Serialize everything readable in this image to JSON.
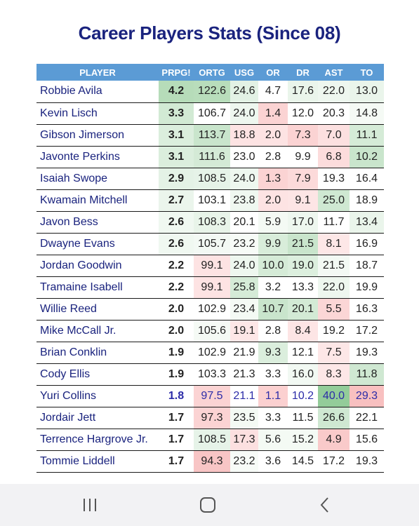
{
  "title": "Career Players Stats (Since 08)",
  "columns": [
    "PLAYER",
    "PRPG!",
    "ORTG",
    "USG",
    "OR",
    "DR",
    "AST",
    "TO"
  ],
  "rows": [
    {
      "player": "Robbie Avila",
      "prpg": "4.2",
      "ortg": "122.6",
      "usg": "24.6",
      "or": "4.7",
      "dr": "17.6",
      "ast": "22.0",
      "to": "13.0"
    },
    {
      "player": "Kevin Lisch",
      "prpg": "3.3",
      "ortg": "106.7",
      "usg": "24.0",
      "or": "1.4",
      "dr": "12.0",
      "ast": "20.3",
      "to": "14.8"
    },
    {
      "player": "Gibson Jimerson",
      "prpg": "3.1",
      "ortg": "113.7",
      "usg": "18.8",
      "or": "2.0",
      "dr": "7.3",
      "ast": "7.0",
      "to": "11.1"
    },
    {
      "player": "Javonte Perkins",
      "prpg": "3.1",
      "ortg": "111.6",
      "usg": "23.0",
      "or": "2.8",
      "dr": "9.9",
      "ast": "6.8",
      "to": "10.2"
    },
    {
      "player": "Isaiah Swope",
      "prpg": "2.9",
      "ortg": "108.5",
      "usg": "24.0",
      "or": "1.3",
      "dr": "7.9",
      "ast": "19.3",
      "to": "16.4"
    },
    {
      "player": "Kwamain Mitchell",
      "prpg": "2.7",
      "ortg": "103.1",
      "usg": "23.8",
      "or": "2.0",
      "dr": "9.1",
      "ast": "25.0",
      "to": "18.9"
    },
    {
      "player": "Javon Bess",
      "prpg": "2.6",
      "ortg": "108.3",
      "usg": "20.1",
      "or": "5.9",
      "dr": "17.0",
      "ast": "11.7",
      "to": "13.4"
    },
    {
      "player": "Dwayne Evans",
      "prpg": "2.6",
      "ortg": "105.7",
      "usg": "23.2",
      "or": "9.9",
      "dr": "21.5",
      "ast": "8.1",
      "to": "16.9"
    },
    {
      "player": "Jordan Goodwin",
      "prpg": "2.2",
      "ortg": "99.1",
      "usg": "24.0",
      "or": "10.0",
      "dr": "19.0",
      "ast": "21.5",
      "to": "18.7"
    },
    {
      "player": "Tramaine Isabell",
      "prpg": "2.2",
      "ortg": "99.1",
      "usg": "25.8",
      "or": "3.2",
      "dr": "13.3",
      "ast": "22.0",
      "to": "19.9"
    },
    {
      "player": "Willie Reed",
      "prpg": "2.0",
      "ortg": "102.9",
      "usg": "23.4",
      "or": "10.7",
      "dr": "20.1",
      "ast": "5.5",
      "to": "16.3"
    },
    {
      "player": "Mike McCall Jr.",
      "prpg": "2.0",
      "ortg": "105.6",
      "usg": "19.1",
      "or": "2.8",
      "dr": "8.4",
      "ast": "19.2",
      "to": "17.2"
    },
    {
      "player": "Brian Conklin",
      "prpg": "1.9",
      "ortg": "102.9",
      "usg": "21.9",
      "or": "9.3",
      "dr": "12.1",
      "ast": "7.5",
      "to": "19.3"
    },
    {
      "player": "Cody Ellis",
      "prpg": "1.9",
      "ortg": "103.3",
      "usg": "21.3",
      "or": "3.3",
      "dr": "16.0",
      "ast": "8.3",
      "to": "11.8"
    },
    {
      "player": "Yuri Collins",
      "prpg": "1.8",
      "ortg": "97.5",
      "usg": "21.1",
      "or": "1.1",
      "dr": "10.2",
      "ast": "40.0",
      "to": "29.3",
      "highlight": true
    },
    {
      "player": "Jordair Jett",
      "prpg": "1.7",
      "ortg": "97.3",
      "usg": "23.5",
      "or": "3.3",
      "dr": "11.5",
      "ast": "26.6",
      "to": "22.1"
    },
    {
      "player": "Terrence Hargrove Jr.",
      "prpg": "1.7",
      "ortg": "108.5",
      "usg": "17.3",
      "or": "5.6",
      "dr": "15.2",
      "ast": "4.9",
      "to": "15.6"
    },
    {
      "player": "Tommie Liddell",
      "prpg": "1.7",
      "ortg": "94.3",
      "usg": "23.2",
      "or": "3.6",
      "dr": "14.5",
      "ast": "17.2",
      "to": "19.3"
    }
  ],
  "cell_colors": {
    "prpg": [
      "#b6dcb9",
      "#d2ead4",
      "#dbeedd",
      "#dbeedd",
      "#e4f2e6",
      "#ebf5ec",
      "#f0f8f1",
      "#f0f8f1",
      "#ffffff",
      "#ffffff",
      "#ffffff",
      "#ffffff",
      "#ffffff",
      "#ffffff",
      "#ffffff",
      "#ffffff",
      "#ffffff",
      "#ffffff"
    ],
    "ortg": [
      "#b8ddbb",
      "#ffffff",
      "#c9e5cc",
      "#d4ead6",
      "#e6f3e8",
      "#ffffff",
      "#e8f4e9",
      "#f3f9f4",
      "#fde3e3",
      "#fde3e3",
      "#ffffff",
      "#f5faf5",
      "#ffffff",
      "#ffffff",
      "#fbd3d3",
      "#fbd3d3",
      "#e6f3e8",
      "#f8c5c5"
    ],
    "usg": [
      "#e3f2e5",
      "#eef7ef",
      "#fde3e3",
      "#ffffff",
      "#eef7ef",
      "#eff8f0",
      "#ffffff",
      "#f7fbf7",
      "#eef7ef",
      "#d5ebd7",
      "#f4faf4",
      "#fde7e7",
      "#ffffff",
      "#ffffff",
      "#ffffff",
      "#f4faf4",
      "#fce0e0",
      "#f7fbf7"
    ],
    "or": [
      "#ffffff",
      "#fbd3d3",
      "#fde3e3",
      "#ffffff",
      "#fbd3d3",
      "#fde3e3",
      "#f4faf4",
      "#d8edda",
      "#d5ebd7",
      "#ffffff",
      "#c9e5cc",
      "#ffffff",
      "#dbeedd",
      "#ffffff",
      "#fbd0d0",
      "#ffffff",
      "#f4faf4",
      "#ffffff"
    ],
    "dr": [
      "#eaf5eb",
      "#ffffff",
      "#fbd3d3",
      "#ffffff",
      "#fcdada",
      "#fde5e5",
      "#eef7ef",
      "#c9e5cc",
      "#dcefde",
      "#ffffff",
      "#d3ead5",
      "#fde5e5",
      "#ffffff",
      "#f2f9f3",
      "#ffffff",
      "#ffffff",
      "#f4faf4",
      "#ffffff"
    ],
    "ast": [
      "#eef7ef",
      "#ffffff",
      "#fce0e0",
      "#fcdcdc",
      "#ffffff",
      "#cfe8d2",
      "#ffffff",
      "#fde7e7",
      "#f3f9f4",
      "#eef7ef",
      "#fbd6d6",
      "#ffffff",
      "#fde7e7",
      "#fde7e7",
      "#93cc99",
      "#cfe8d2",
      "#f9caca",
      "#ffffff"
    ],
    "to": [
      "#eaf5eb",
      "#f5faf5",
      "#d5ebd7",
      "#c9e5cc",
      "#ffffff",
      "#ffffff",
      "#eaf5eb",
      "#ffffff",
      "#ffffff",
      "#ffffff",
      "#ffffff",
      "#ffffff",
      "#ffffff",
      "#cfe8d2",
      "#f8c0c0",
      "#ffffff",
      "#ffffff",
      "#ffffff"
    ]
  }
}
